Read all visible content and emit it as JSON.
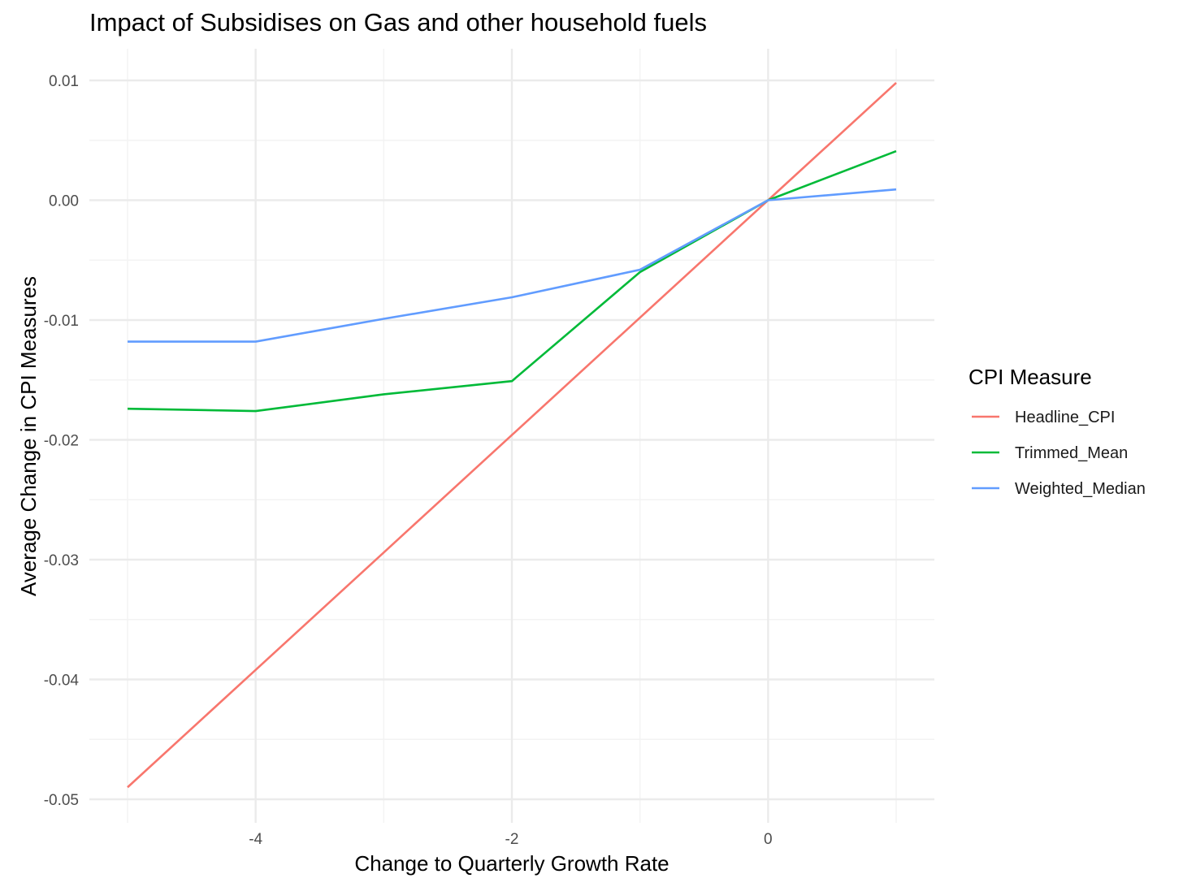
{
  "chart_data": {
    "type": "line",
    "title": "Impact of Subsidises on Gas and other household fuels",
    "xlabel": "Change to Quarterly Growth Rate",
    "ylabel": "Average Change in CPI Measures",
    "x": [
      -5,
      -4,
      -3,
      -2,
      -1,
      0,
      1
    ],
    "xlim": [
      -5,
      1
    ],
    "ylim": [
      -0.05,
      0.01
    ],
    "x_ticks": [
      -4,
      -2,
      0
    ],
    "x_tick_labels": [
      "-4",
      "-2",
      "0"
    ],
    "y_ticks": [
      -0.05,
      -0.04,
      -0.03,
      -0.02,
      -0.01,
      0.0,
      0.01
    ],
    "y_tick_labels": [
      "-0.05",
      "-0.04",
      "-0.03",
      "-0.02",
      "-0.01",
      "0.00",
      "0.01"
    ],
    "grid": true,
    "legend": {
      "title": "CPI Measure",
      "placement": "right"
    },
    "series": [
      {
        "name": "Headline_CPI",
        "color": "#F8766D",
        "values": [
          -0.049,
          -0.0392,
          -0.0294,
          -0.0196,
          -0.0098,
          0.0,
          0.0098
        ]
      },
      {
        "name": "Trimmed_Mean",
        "color": "#00BA38",
        "values": [
          -0.0174,
          -0.0176,
          -0.0162,
          -0.0151,
          -0.006,
          0.0,
          0.0041
        ]
      },
      {
        "name": "Weighted_Median",
        "color": "#619CFF",
        "values": [
          -0.0118,
          -0.0118,
          -0.0099,
          -0.0081,
          -0.0058,
          0.0,
          0.0009
        ]
      }
    ]
  }
}
